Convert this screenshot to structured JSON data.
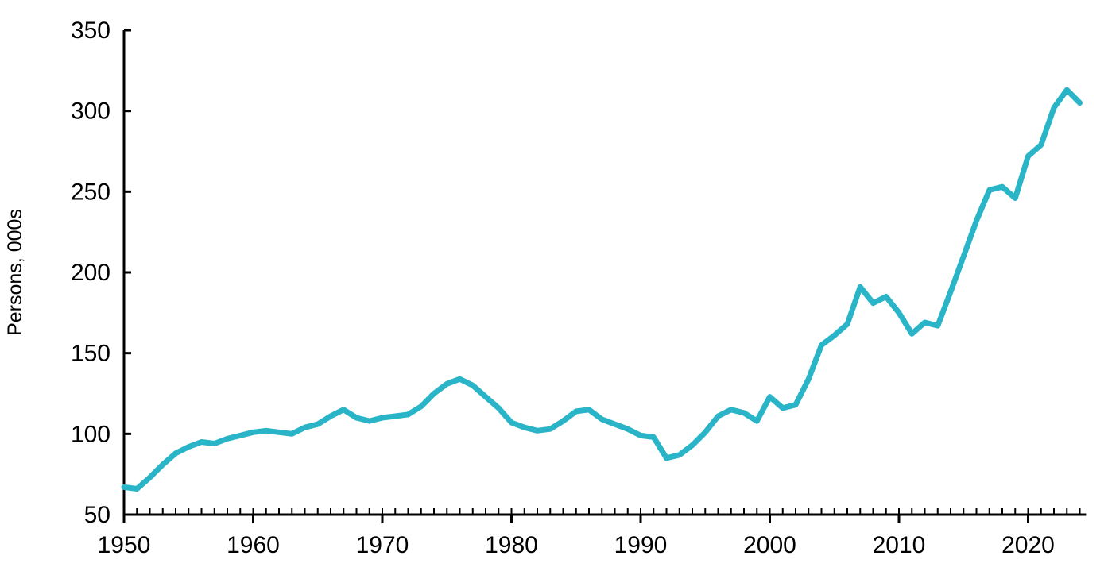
{
  "chart_data": {
    "type": "line",
    "title": "",
    "xlabel": "",
    "ylabel": "Persons, 000s",
    "series": [
      {
        "name": "Persons, 000s",
        "x": [
          1950,
          1951,
          1952,
          1953,
          1954,
          1955,
          1956,
          1957,
          1958,
          1959,
          1960,
          1961,
          1962,
          1963,
          1964,
          1965,
          1966,
          1967,
          1968,
          1969,
          1970,
          1971,
          1972,
          1973,
          1974,
          1975,
          1976,
          1977,
          1978,
          1979,
          1980,
          1981,
          1982,
          1983,
          1984,
          1985,
          1986,
          1987,
          1988,
          1989,
          1990,
          1991,
          1992,
          1993,
          1994,
          1995,
          1996,
          1997,
          1998,
          1999,
          2000,
          2001,
          2002,
          2003,
          2004,
          2005,
          2006,
          2007,
          2008,
          2009,
          2010,
          2011,
          2012,
          2013,
          2014,
          2015,
          2016,
          2017,
          2018,
          2019,
          2020,
          2021,
          2022,
          2023,
          2024
        ],
        "values": [
          67,
          66,
          73,
          81,
          88,
          92,
          95,
          94,
          97,
          99,
          101,
          102,
          101,
          100,
          104,
          106,
          111,
          115,
          110,
          108,
          110,
          111,
          112,
          117,
          125,
          131,
          134,
          130,
          123,
          116,
          107,
          104,
          102,
          103,
          108,
          114,
          115,
          109,
          106,
          103,
          99,
          98,
          85,
          87,
          93,
          101,
          111,
          115,
          113,
          108,
          123,
          116,
          118,
          134,
          155,
          161,
          168,
          191,
          181,
          185,
          175,
          162,
          169,
          167,
          188,
          210,
          232,
          251,
          253,
          246,
          272,
          279,
          302,
          313,
          305
        ]
      }
    ],
    "xlim": [
      1950,
      2024.3
    ],
    "ylim": [
      50,
      350
    ],
    "y_ticks": [
      50,
      100,
      150,
      200,
      250,
      300,
      350
    ],
    "y_tick_labels": [
      "50",
      "100",
      "150",
      "200",
      "250",
      "300",
      "350"
    ],
    "x_major_ticks": [
      1950,
      1960,
      1970,
      1980,
      1990,
      2000,
      2010,
      2020
    ],
    "x_major_tick_labels": [
      "1950",
      "1960",
      "1970",
      "1980",
      "1990",
      "2000",
      "2010",
      "2020"
    ],
    "x_minor_tick_interval": 1,
    "grid": false,
    "legend": false,
    "line_color": "#29b4c8",
    "axis_color": "#000000",
    "background_color": "#ffffff"
  }
}
